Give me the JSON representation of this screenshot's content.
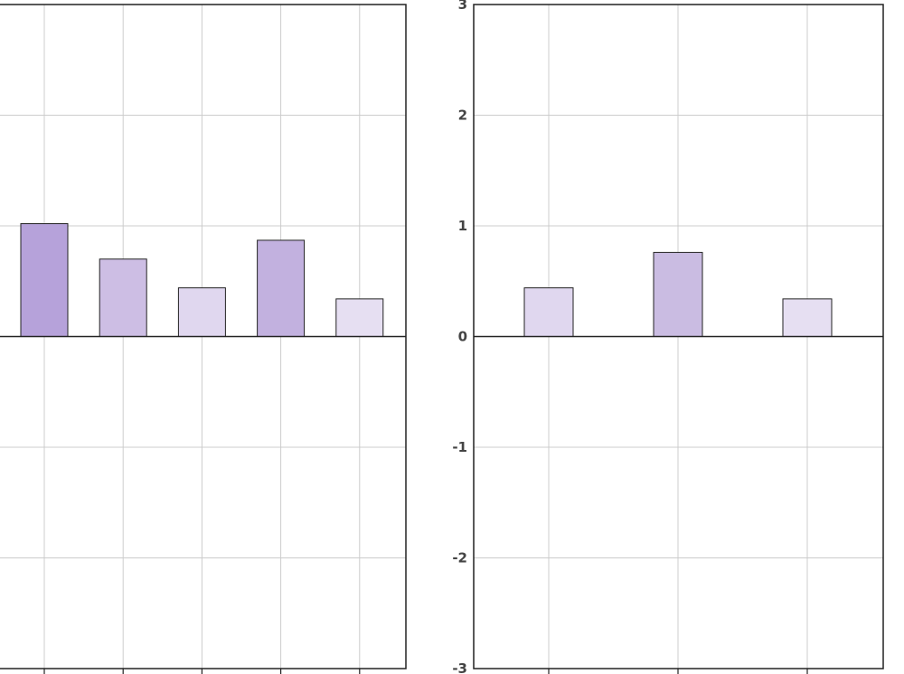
{
  "chart_data": [
    {
      "type": "bar",
      "categories": [
        "",
        "",
        "",
        "",
        ""
      ],
      "values": [
        1.02,
        0.7,
        0.44,
        0.87,
        0.34
      ],
      "colors": [
        "#b6a2da",
        "#cdbee4",
        "#e0d7ef",
        "#c2b1df",
        "#e6dff2"
      ],
      "ylim": [
        -3,
        3
      ],
      "yticks": [],
      "grid": true
    },
    {
      "type": "bar",
      "categories": [
        "",
        "",
        ""
      ],
      "values": [
        0.44,
        0.76,
        0.34
      ],
      "colors": [
        "#e0d7ef",
        "#cabce2",
        "#e6dff2"
      ],
      "ylim": [
        -3,
        3
      ],
      "yticks": [
        "-3",
        "-2",
        "-1",
        "0",
        "1",
        "2",
        "3"
      ],
      "grid": true
    }
  ]
}
